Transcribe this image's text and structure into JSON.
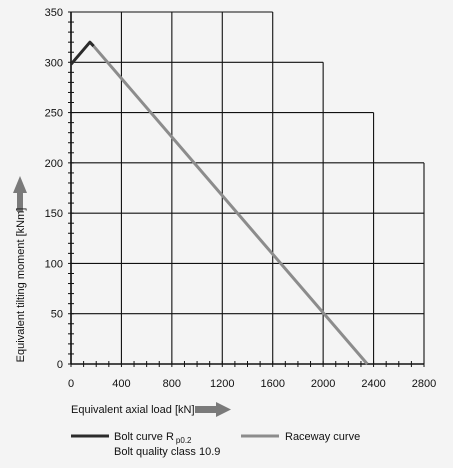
{
  "chart_data": {
    "type": "line",
    "xlabel": "Equivalent axial load [kN]",
    "ylabel": "Equivalent tilting moment [kNm]",
    "xticks": [
      0,
      400,
      800,
      1200,
      1600,
      2000,
      2400,
      2800
    ],
    "yticks": [
      0,
      50,
      100,
      150,
      200,
      250,
      300,
      350
    ],
    "xlim": [
      0,
      2800
    ],
    "ylim": [
      0,
      350
    ],
    "grid": true,
    "grid_step_ticks": {
      "x_minor": 100,
      "y_minor": 10
    },
    "stepped_grid_boundary": [
      {
        "x_to": 400,
        "y_max": 350
      },
      {
        "x_to": 1600,
        "y_max": 350
      },
      {
        "x_to": 2000,
        "y_max": 300
      },
      {
        "x_to": 2400,
        "y_max": 250
      },
      {
        "x_to": 2800,
        "y_max": 200
      }
    ],
    "series": [
      {
        "key": "bolt",
        "legend_main": "Bolt curve  R",
        "legend_sub": "p0.2",
        "legend_line2": "Bolt quality class 10.9",
        "color": "#2b2b2b",
        "points": [
          [
            0,
            298
          ],
          [
            150,
            320
          ],
          [
            180,
            316
          ]
        ]
      },
      {
        "key": "raceway",
        "legend_main": "Raceway curve",
        "color": "#8c8c8c",
        "points": [
          [
            180,
            316
          ],
          [
            2350,
            0
          ]
        ]
      }
    ],
    "axis_arrow_color": "#7a7a7a"
  }
}
